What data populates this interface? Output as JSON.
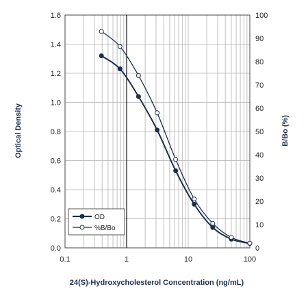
{
  "chart_data": {
    "type": "line",
    "title": "",
    "xlabel": "24(S)-Hydroxycholesterol Concentration (ng/mL)",
    "ylabel_left": "Optical Density",
    "ylabel_right": "B/Bo (%)",
    "x_scale": "log",
    "xlim": [
      0.1,
      100
    ],
    "ylim_left": [
      0.0,
      1.6
    ],
    "ylim_right": [
      0,
      100
    ],
    "x_ticks": [
      "0.1",
      "1",
      "10",
      "100"
    ],
    "y_ticks_left": [
      "0.0",
      "0.2",
      "0.4",
      "0.6",
      "0.8",
      "1.0",
      "1.2",
      "1.4",
      "1.6"
    ],
    "y_ticks_right": [
      "0",
      "10",
      "20",
      "30",
      "40",
      "50",
      "60",
      "70",
      "80",
      "90",
      "100"
    ],
    "grid": true,
    "legend_position": "bottom-left",
    "series": [
      {
        "name": "OD",
        "axis": "left",
        "marker": "filled-circle",
        "color": "#1b2f4e",
        "x": [
          0.39,
          0.78,
          1.56,
          3.13,
          6.25,
          12.5,
          25,
          50,
          100
        ],
        "y": [
          1.32,
          1.23,
          1.04,
          0.81,
          0.53,
          0.3,
          0.14,
          0.06,
          0.03
        ]
      },
      {
        "name": "%B/Bo",
        "axis": "right",
        "marker": "open-circle",
        "color": "#1b2f4e",
        "x": [
          0.39,
          0.78,
          1.56,
          3.13,
          6.25,
          12.5,
          25,
          50,
          100
        ],
        "y": [
          93,
          86.5,
          74,
          58,
          38,
          21,
          10.5,
          4.5,
          2
        ]
      }
    ]
  }
}
